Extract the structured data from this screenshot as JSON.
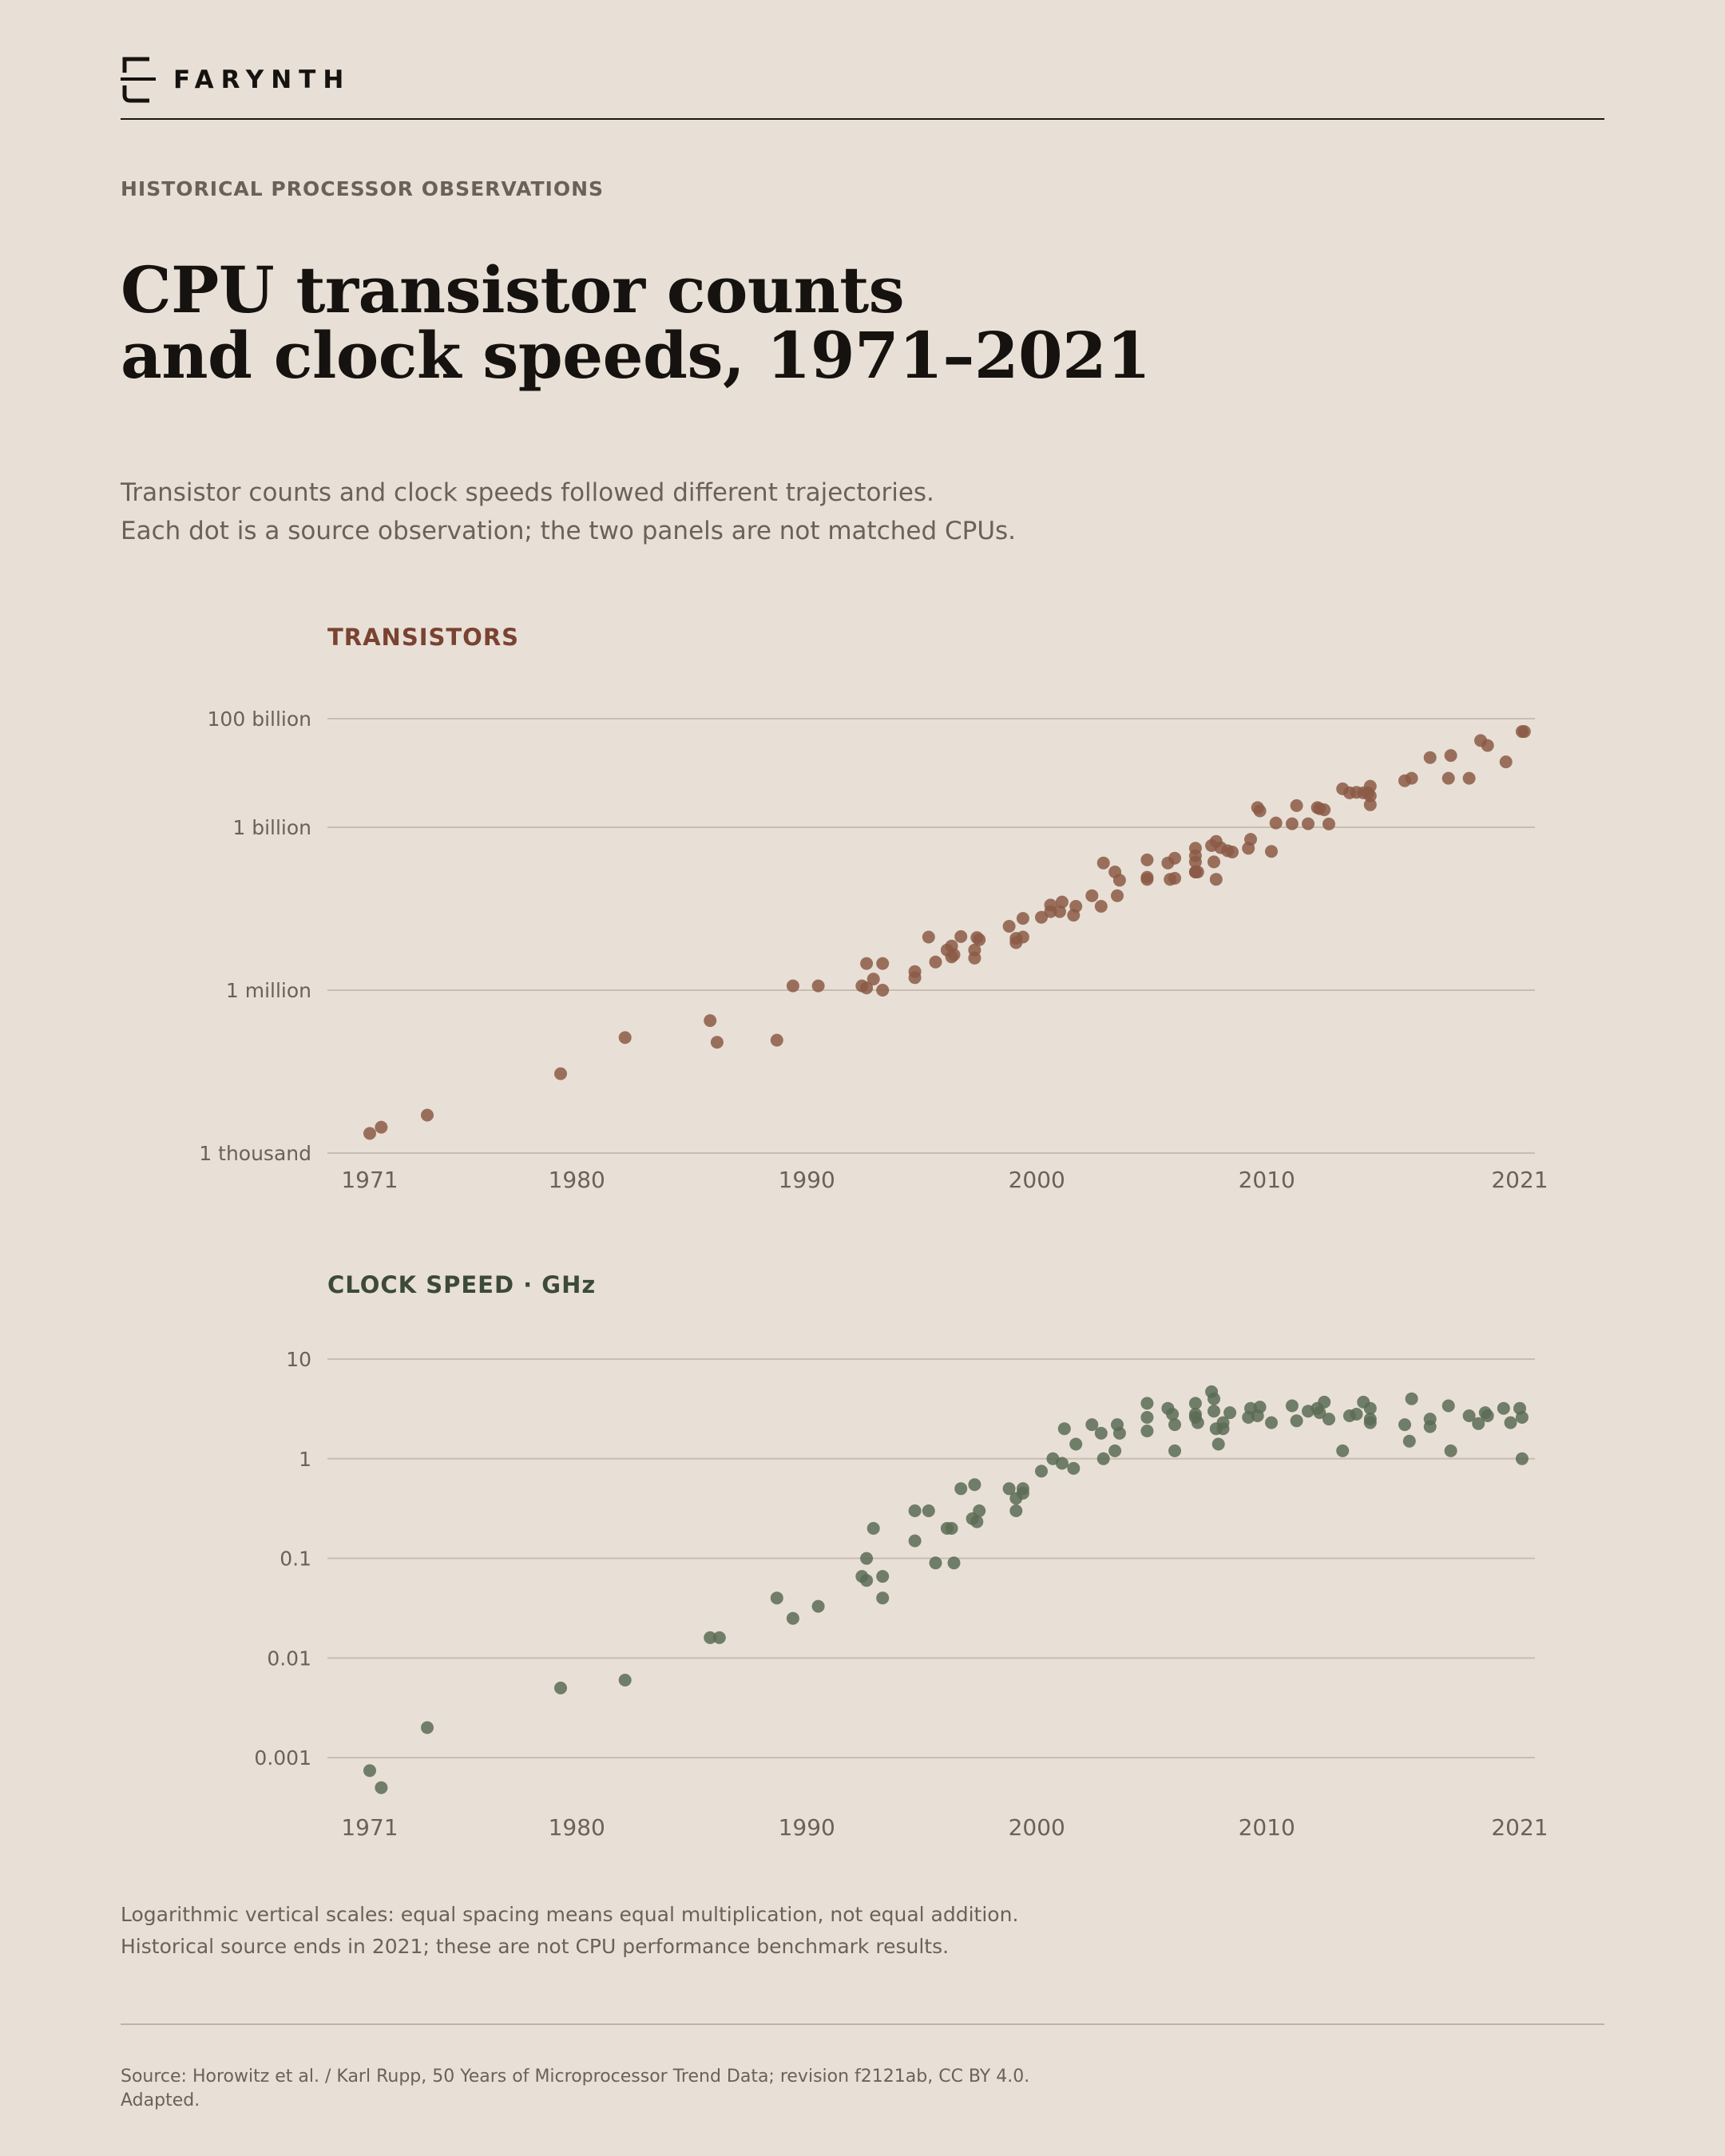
{
  "brand": {
    "name": "FARYNTH",
    "logo_icon": "bracket-logo-icon"
  },
  "header": {
    "eyebrow": "HISTORICAL PROCESSOR OBSERVATIONS",
    "title_line1": "CPU transistor counts",
    "title_line2": "and clock speeds, 1971–2021",
    "subtitle_line1": "Transistor counts and clock speeds followed different trajectories.",
    "subtitle_line2": "Each dot is a source observation; the two panels are not matched CPUs."
  },
  "colors": {
    "background": "#e8e0d6",
    "transistor_dot": "#8b5a46",
    "transistor_label": "#7a4232",
    "clock_dot": "#5b6b55",
    "clock_label": "#3d4a38",
    "grid": "#c9bdb1",
    "muted_text": "#6a6258"
  },
  "chart_data": [
    {
      "type": "scatter",
      "title": "TRANSISTORS",
      "y_scale": "log",
      "ylim": [
        1000,
        100000000000
      ],
      "y_ticks": [
        {
          "value": 100000000000,
          "label": "100 billion"
        },
        {
          "value": 1000000000,
          "label": "1 billion"
        },
        {
          "value": 1000000,
          "label": "1 million"
        },
        {
          "value": 1000,
          "label": "1 thousand"
        }
      ],
      "xlim": [
        1971,
        2021
      ],
      "x_ticks": [
        {
          "value": 1971,
          "label": "1971"
        },
        {
          "value": 1980,
          "label": "1980"
        },
        {
          "value": 1990,
          "label": "1990"
        },
        {
          "value": 2000,
          "label": "2000"
        },
        {
          "value": 2010,
          "label": "2010"
        },
        {
          "value": 2021,
          "label": "2021"
        }
      ],
      "grid": true,
      "points": [
        [
          1971.0,
          2300
        ],
        [
          1971.5,
          3000
        ],
        [
          1973.5,
          5000
        ],
        [
          1979.3,
          29000
        ],
        [
          1982.1,
          134000
        ],
        [
          1985.8,
          275000
        ],
        [
          1986.1,
          110000
        ],
        [
          1988.7,
          120000
        ],
        [
          1989.4,
          1200000
        ],
        [
          1990.5,
          1200000
        ],
        [
          1992.4,
          1200000
        ],
        [
          1992.6,
          1100000
        ],
        [
          1992.6,
          3100000
        ],
        [
          1992.9,
          1600000
        ],
        [
          1993.3,
          3100000
        ],
        [
          1993.3,
          1000000
        ],
        [
          1994.7,
          2200000
        ],
        [
          1994.7,
          1700000
        ],
        [
          1995.3,
          9500000
        ],
        [
          1995.6,
          3300000
        ],
        [
          1996.1,
          5500000
        ],
        [
          1996.3,
          4100000
        ],
        [
          1996.3,
          6500000
        ],
        [
          1996.4,
          4500000
        ],
        [
          1996.7,
          9700000
        ],
        [
          1997.3,
          5500000
        ],
        [
          1997.3,
          3900000
        ],
        [
          1997.4,
          9300000
        ],
        [
          1997.5,
          8500000
        ],
        [
          1998.8,
          15000000
        ],
        [
          1999.1,
          7500000
        ],
        [
          1999.1,
          9000000
        ],
        [
          1999.4,
          9500000
        ],
        [
          1999.4,
          21000000
        ],
        [
          2000.2,
          22000000
        ],
        [
          2000.6,
          28000000
        ],
        [
          2000.6,
          37000000
        ],
        [
          2001.0,
          28000000
        ],
        [
          2001.1,
          42000000
        ],
        [
          2001.6,
          24000000
        ],
        [
          2001.7,
          35000000
        ],
        [
          2002.4,
          55000000
        ],
        [
          2002.8,
          35000000
        ],
        [
          2002.9,
          220000000
        ],
        [
          2003.4,
          150000000
        ],
        [
          2003.5,
          55000000
        ],
        [
          2003.6,
          106000000
        ],
        [
          2004.8,
          120000000
        ],
        [
          2004.8,
          110000000
        ],
        [
          2004.8,
          250000000
        ],
        [
          2005.7,
          220000000
        ],
        [
          2005.8,
          110000000
        ],
        [
          2006.0,
          270000000
        ],
        [
          2006.0,
          115000000
        ],
        [
          2006.9,
          150000000
        ],
        [
          2006.9,
          300000000
        ],
        [
          2006.9,
          410000000
        ],
        [
          2006.9,
          150000000
        ],
        [
          2006.9,
          230000000
        ],
        [
          2007.0,
          150000000
        ],
        [
          2007.6,
          460000000
        ],
        [
          2007.7,
          230000000
        ],
        [
          2007.8,
          550000000
        ],
        [
          2007.8,
          110000000
        ],
        [
          2008.0,
          420000000
        ],
        [
          2008.3,
          370000000
        ],
        [
          2008.5,
          350000000
        ],
        [
          2009.2,
          410000000
        ],
        [
          2009.3,
          600000000
        ],
        [
          2009.6,
          2300000000
        ],
        [
          2009.7,
          2000000000
        ],
        [
          2010.2,
          360000000
        ],
        [
          2010.4,
          1200000000
        ],
        [
          2011.1,
          1160000000
        ],
        [
          2011.3,
          2500000000
        ],
        [
          2011.8,
          1160000000
        ],
        [
          2012.2,
          2300000000
        ],
        [
          2012.3,
          2200000000
        ],
        [
          2012.5,
          2100000000
        ],
        [
          2012.7,
          1150000000
        ],
        [
          2013.3,
          5100000000
        ],
        [
          2013.6,
          4300000000
        ],
        [
          2013.9,
          4400000000
        ],
        [
          2014.2,
          4300000000
        ],
        [
          2014.4,
          4300000000
        ],
        [
          2014.5,
          3800000000
        ],
        [
          2014.5,
          2600000000
        ],
        [
          2014.5,
          5700000000
        ],
        [
          2016.0,
          7200000000
        ],
        [
          2016.3,
          8000000000
        ],
        [
          2017.1,
          19200000000
        ],
        [
          2017.9,
          8000000000
        ],
        [
          2018.0,
          21000000000
        ],
        [
          2018.8,
          8000000000
        ],
        [
          2019.3,
          39500000000
        ],
        [
          2019.6,
          32000000000
        ],
        [
          2020.4,
          16000000000
        ],
        [
          2021.1,
          58000000000
        ],
        [
          2021.2,
          58000000000
        ]
      ]
    },
    {
      "type": "scatter",
      "title": "CLOCK SPEED · GHz",
      "y_scale": "log",
      "ylim": [
        0.00035,
        10
      ],
      "y_ticks": [
        {
          "value": 10,
          "label": "10"
        },
        {
          "value": 1,
          "label": "1"
        },
        {
          "value": 0.1,
          "label": "0.1"
        },
        {
          "value": 0.01,
          "label": "0.01"
        },
        {
          "value": 0.001,
          "label": "0.001"
        }
      ],
      "xlim": [
        1971,
        2021
      ],
      "x_ticks": [
        {
          "value": 1971,
          "label": "1971"
        },
        {
          "value": 1980,
          "label": "1980"
        },
        {
          "value": 1990,
          "label": "1990"
        },
        {
          "value": 2000,
          "label": "2000"
        },
        {
          "value": 2010,
          "label": "2010"
        },
        {
          "value": 2021,
          "label": "2021"
        }
      ],
      "grid": true,
      "points": [
        [
          1971.0,
          0.00074
        ],
        [
          1971.5,
          0.0005
        ],
        [
          1973.5,
          0.002
        ],
        [
          1979.3,
          0.005
        ],
        [
          1982.1,
          0.006
        ],
        [
          1985.8,
          0.016
        ],
        [
          1986.2,
          0.016
        ],
        [
          1988.7,
          0.04
        ],
        [
          1989.4,
          0.025
        ],
        [
          1990.5,
          0.033
        ],
        [
          1992.4,
          0.066
        ],
        [
          1992.6,
          0.1
        ],
        [
          1992.6,
          0.06
        ],
        [
          1992.9,
          0.2
        ],
        [
          1993.3,
          0.066
        ],
        [
          1993.3,
          0.04
        ],
        [
          1994.7,
          0.3
        ],
        [
          1994.7,
          0.15
        ],
        [
          1995.3,
          0.3
        ],
        [
          1995.6,
          0.09
        ],
        [
          1996.1,
          0.2
        ],
        [
          1996.3,
          0.2
        ],
        [
          1996.4,
          0.09
        ],
        [
          1996.7,
          0.5
        ],
        [
          1997.2,
          0.25
        ],
        [
          1997.3,
          0.55
        ],
        [
          1997.4,
          0.233
        ],
        [
          1997.5,
          0.3
        ],
        [
          1998.8,
          0.5
        ],
        [
          1999.1,
          0.4
        ],
        [
          1999.1,
          0.3
        ],
        [
          1999.4,
          0.5
        ],
        [
          1999.4,
          0.45
        ],
        [
          2000.2,
          0.75
        ],
        [
          2000.7,
          1.0
        ],
        [
          2001.1,
          0.9
        ],
        [
          2001.2,
          2.0
        ],
        [
          2001.6,
          0.8
        ],
        [
          2001.7,
          1.4
        ],
        [
          2002.4,
          2.2
        ],
        [
          2002.8,
          1.8
        ],
        [
          2002.9,
          1.0
        ],
        [
          2003.4,
          1.2
        ],
        [
          2003.5,
          2.2
        ],
        [
          2003.6,
          1.8
        ],
        [
          2004.8,
          3.6
        ],
        [
          2004.8,
          2.6
        ],
        [
          2004.8,
          1.9
        ],
        [
          2005.7,
          3.2
        ],
        [
          2005.9,
          2.8
        ],
        [
          2006.0,
          1.2
        ],
        [
          2006.0,
          2.2
        ],
        [
          2006.9,
          3.6
        ],
        [
          2006.9,
          2.6
        ],
        [
          2006.9,
          2.8
        ],
        [
          2007.0,
          2.3
        ],
        [
          2007.6,
          4.7
        ],
        [
          2007.7,
          3.0
        ],
        [
          2007.7,
          4.0
        ],
        [
          2007.8,
          2.0
        ],
        [
          2007.9,
          1.4
        ],
        [
          2008.1,
          2.3
        ],
        [
          2008.1,
          2.0
        ],
        [
          2008.4,
          2.9
        ],
        [
          2009.2,
          2.6
        ],
        [
          2009.3,
          3.2
        ],
        [
          2009.6,
          2.7
        ],
        [
          2009.7,
          3.3
        ],
        [
          2010.2,
          2.3
        ],
        [
          2011.1,
          3.4
        ],
        [
          2011.3,
          2.4
        ],
        [
          2011.8,
          3.0
        ],
        [
          2012.2,
          3.2
        ],
        [
          2012.3,
          2.9
        ],
        [
          2012.5,
          3.7
        ],
        [
          2012.7,
          2.5
        ],
        [
          2013.3,
          1.2
        ],
        [
          2013.6,
          2.7
        ],
        [
          2013.9,
          2.8
        ],
        [
          2014.2,
          3.7
        ],
        [
          2014.5,
          3.2
        ],
        [
          2014.5,
          2.5
        ],
        [
          2014.5,
          2.3
        ],
        [
          2016.0,
          2.2
        ],
        [
          2016.2,
          1.5
        ],
        [
          2016.3,
          4.0
        ],
        [
          2017.1,
          2.1
        ],
        [
          2017.1,
          2.5
        ],
        [
          2017.9,
          3.4
        ],
        [
          2018.0,
          1.2
        ],
        [
          2018.8,
          2.7
        ],
        [
          2019.2,
          2.25
        ],
        [
          2019.5,
          2.9
        ],
        [
          2019.6,
          2.7
        ],
        [
          2020.3,
          3.2
        ],
        [
          2020.6,
          2.3
        ],
        [
          2021.0,
          3.2
        ],
        [
          2021.1,
          2.6
        ],
        [
          2021.1,
          1.0
        ]
      ]
    }
  ],
  "notes": {
    "line1": "Logarithmic vertical scales: equal spacing means equal multiplication, not equal addition.",
    "line2": "Historical source ends in 2021; these are not CPU performance benchmark results."
  },
  "source": {
    "line1": "Source: Horowitz et al. / Karl Rupp, 50 Years of Microprocessor Trend Data; revision f2121ab, CC BY 4.0.",
    "line2": "Adapted."
  }
}
